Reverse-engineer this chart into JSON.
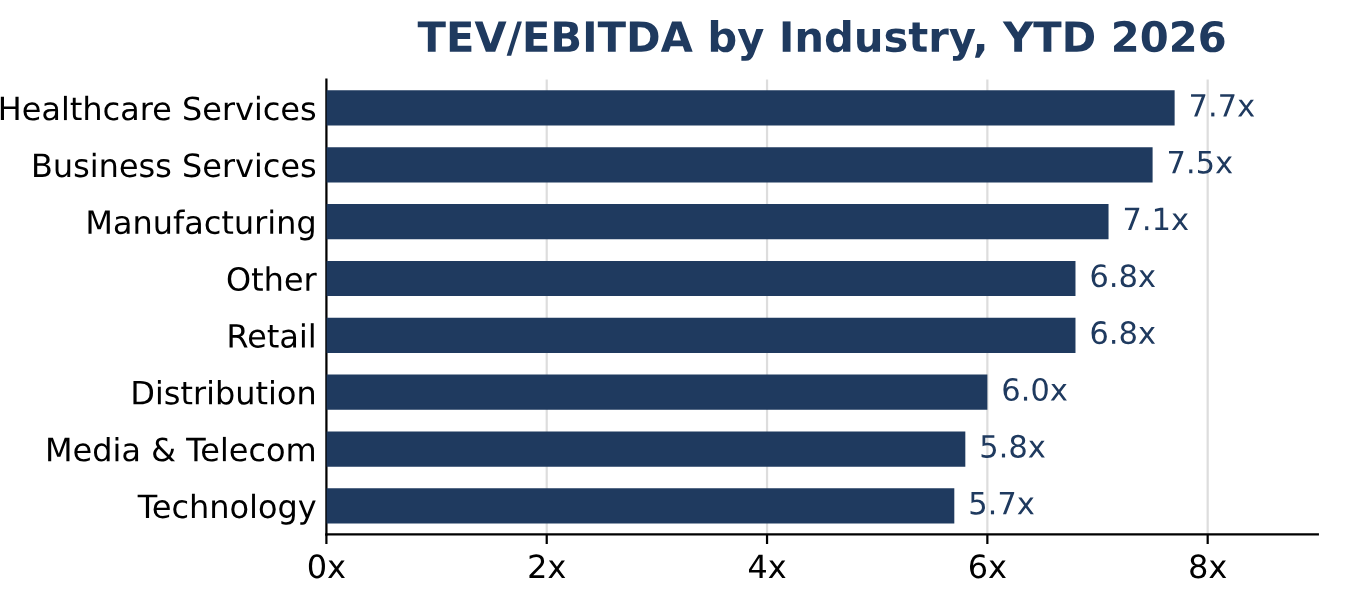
{
  "chart_data": {
    "type": "bar",
    "orientation": "horizontal",
    "title": "TEV/EBITDA by Industry, YTD 2026",
    "categories": [
      "Healthcare Services",
      "Business Services",
      "Manufacturing",
      "Other",
      "Retail",
      "Distribution",
      "Media & Telecom",
      "Technology"
    ],
    "values": [
      7.7,
      7.5,
      7.1,
      6.8,
      6.8,
      6.0,
      5.8,
      5.7
    ],
    "value_labels": [
      "7.7x",
      "7.5x",
      "7.1x",
      "6.8x",
      "6.8x",
      "6.0x",
      "5.8x",
      "5.7x"
    ],
    "color": "#1f3a5f",
    "xlim": [
      0,
      9
    ],
    "xticks": [
      {
        "value": 0,
        "label": "0x"
      },
      {
        "value": 2,
        "label": "2x"
      },
      {
        "value": 4,
        "label": "4x"
      },
      {
        "value": 6,
        "label": "6x"
      },
      {
        "value": 8,
        "label": "8x"
      }
    ],
    "grid": "x"
  }
}
